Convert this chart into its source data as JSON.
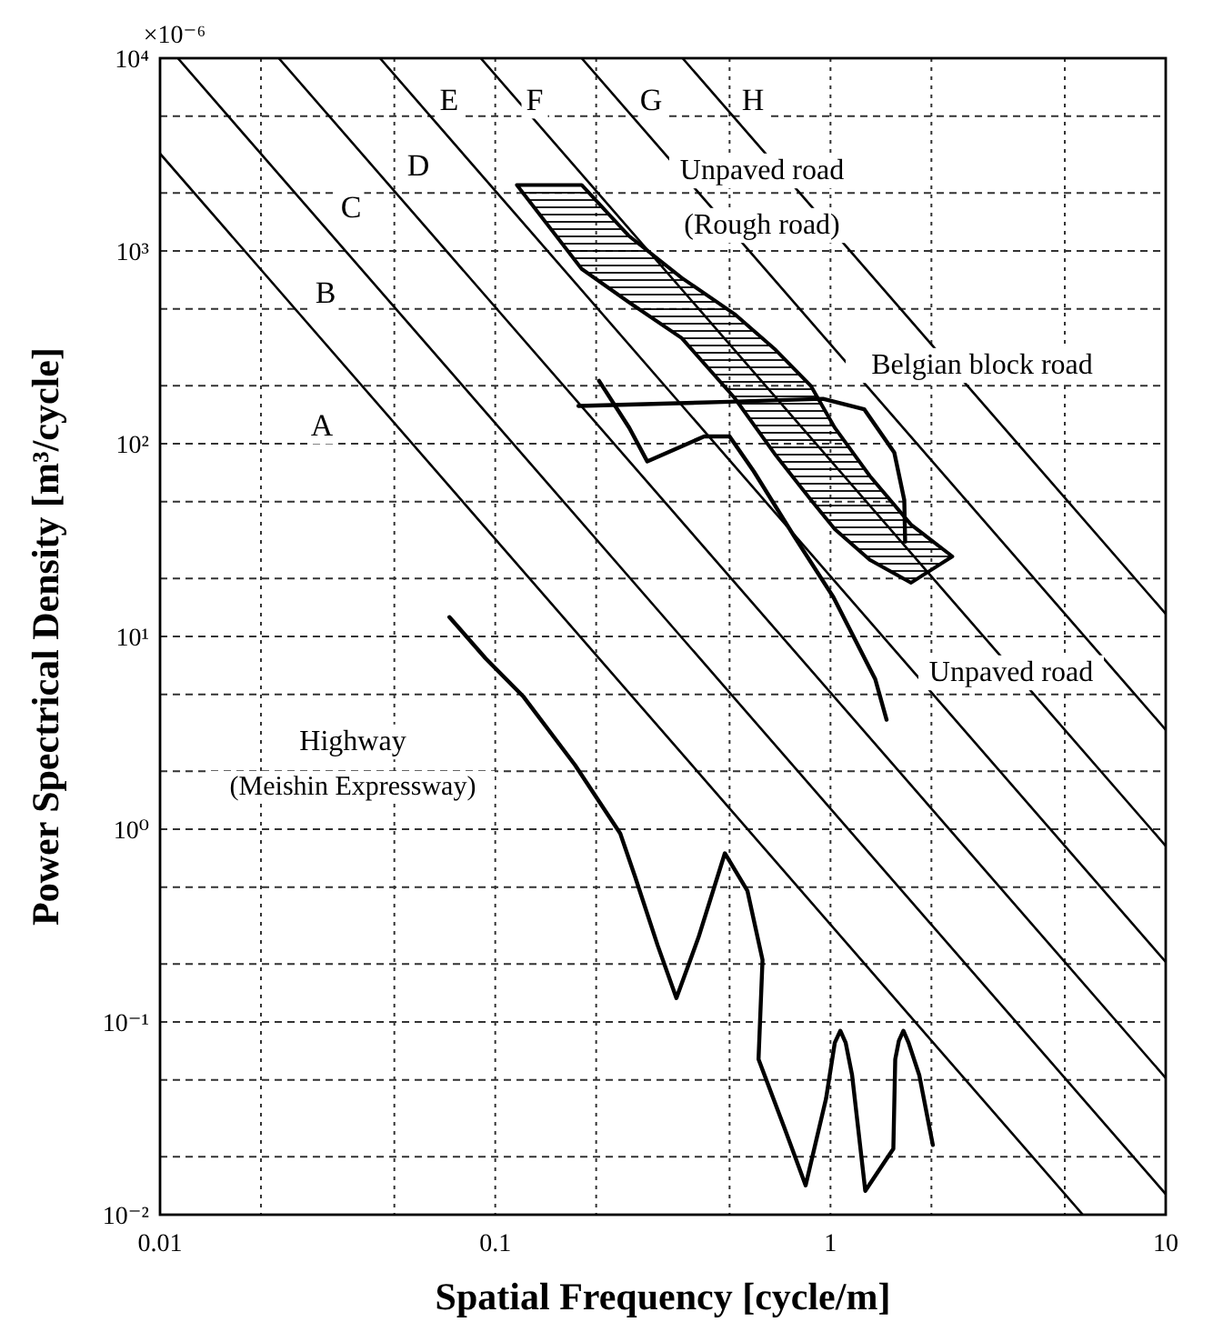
{
  "chart_data": {
    "type": "line",
    "xlabel": "Spatial Frequency [cycle/m]",
    "ylabel": "Power Spectrical Density [m³/cycle]",
    "log": "xy",
    "grid": true,
    "marker": "none",
    "line_style": "solid",
    "xlim": [
      0.01,
      10
    ],
    "ylim": [
      0.01,
      10000
    ],
    "xticks": [
      0.01,
      {
        "value": 0.02,
        "label": null
      },
      {
        "value": 0.05,
        "label": null
      },
      0.1,
      {
        "value": 0.2,
        "label": null
      },
      {
        "value": 0.5,
        "label": null
      },
      1,
      {
        "value": 2,
        "label": null
      },
      {
        "value": 5,
        "label": null
      },
      10
    ],
    "yticks": [
      {
        "value": 0.01,
        "label": "10⁻²"
      },
      {
        "value": 0.02,
        "label": null
      },
      {
        "value": 0.05,
        "label": null
      },
      {
        "value": 0.1,
        "label": "10⁻¹"
      },
      {
        "value": 0.2,
        "label": null
      },
      {
        "value": 0.5,
        "label": null
      },
      {
        "value": 1,
        "label": "10⁰"
      },
      {
        "value": 2,
        "label": null
      },
      {
        "value": 5,
        "label": null
      },
      {
        "value": 10,
        "label": "10¹"
      },
      {
        "value": 20,
        "label": null
      },
      {
        "value": 50,
        "label": null
      },
      {
        "value": 100,
        "label": "10²"
      },
      {
        "value": 200,
        "label": null
      },
      {
        "value": 500,
        "label": null
      },
      {
        "value": 1000,
        "label": "10³"
      },
      {
        "value": 2000,
        "label": null
      },
      {
        "value": 5000,
        "label": null
      },
      {
        "value": 10000,
        "label": "10⁴"
      }
    ],
    "series": [
      {
        "color": "#000000",
        "x": [
          0.01,
          5.66
        ],
        "values": [
          3200,
          0.01
        ]
      },
      {
        "color": "#000000",
        "x": [
          0.0113,
          10
        ],
        "values": [
          10000,
          0.0128
        ]
      },
      {
        "color": "#000000",
        "x": [
          0.0226,
          10
        ],
        "values": [
          10000,
          0.0512
        ]
      },
      {
        "color": "#000000",
        "x": [
          0.0453,
          10
        ],
        "values": [
          10000,
          0.2048
        ]
      },
      {
        "color": "#000000",
        "x": [
          0.0905,
          10
        ],
        "values": [
          10000,
          0.8192
        ]
      },
      {
        "color": "#000000",
        "x": [
          0.181,
          10
        ],
        "values": [
          10000,
          3.28
        ]
      },
      {
        "color": "#000000",
        "x": [
          0.362,
          10
        ],
        "values": [
          10000,
          13.1
        ]
      },
      {
        "type": "area",
        "color": "#000000",
        "x": [
          0.116,
          0.181,
          0.25,
          0.36,
          0.517,
          0.687,
          0.875,
          1.03,
          1.31,
          1.74,
          2.31,
          1.74,
          1.31,
          1.03,
          0.875,
          0.687,
          0.517,
          0.36,
          0.25,
          0.181
        ],
        "values": [
          2200,
          2200,
          1200,
          725,
          471,
          306,
          199,
          121,
          68,
          38,
          26,
          19,
          25,
          36,
          51,
          87,
          173,
          353,
          543,
          807
        ]
      },
      {
        "color": "#000000",
        "x": [
          0.177,
          0.5,
          0.95,
          1.26,
          1.55,
          1.66,
          1.67
        ],
        "values": [
          157,
          165,
          171,
          151,
          90,
          51,
          31
        ]
      },
      {
        "color": "#000000",
        "x": [
          0.204,
          0.251,
          0.284,
          0.42,
          0.5,
          0.59,
          0.78,
          1.02,
          1.36,
          1.47
        ],
        "values": [
          212,
          121,
          81,
          109,
          109,
          72,
          33,
          16,
          6,
          3.7
        ]
      },
      {
        "color": "#000000",
        "x": [
          0.073,
          0.0935,
          0.121,
          0.173,
          0.236,
          0.261,
          0.305,
          0.347,
          0.404,
          0.484,
          0.565,
          0.627,
          0.61,
          0.73,
          0.843,
          0.97,
          1.03,
          1.07,
          1.11,
          1.16,
          1.27,
          1.54,
          1.56,
          1.6,
          1.65,
          1.71,
          1.84,
          2.02
        ],
        "values": [
          12.6,
          7.7,
          4.9,
          2.15,
          0.95,
          0.57,
          0.25,
          0.133,
          0.275,
          0.75,
          0.48,
          0.21,
          0.064,
          0.028,
          0.0142,
          0.04,
          0.078,
          0.09,
          0.078,
          0.053,
          0.0133,
          0.022,
          0.064,
          0.08,
          0.09,
          0.078,
          0.053,
          0.023
        ]
      }
    ],
    "annotations": [
      "×10⁻⁶",
      "A",
      "B",
      "C",
      "D",
      "E",
      "F",
      "G",
      "H",
      "Unpaved road",
      "(Rough road)",
      "Belgian block road",
      "Unpaved road",
      "Highway",
      "(Meishin Expressway)"
    ]
  }
}
